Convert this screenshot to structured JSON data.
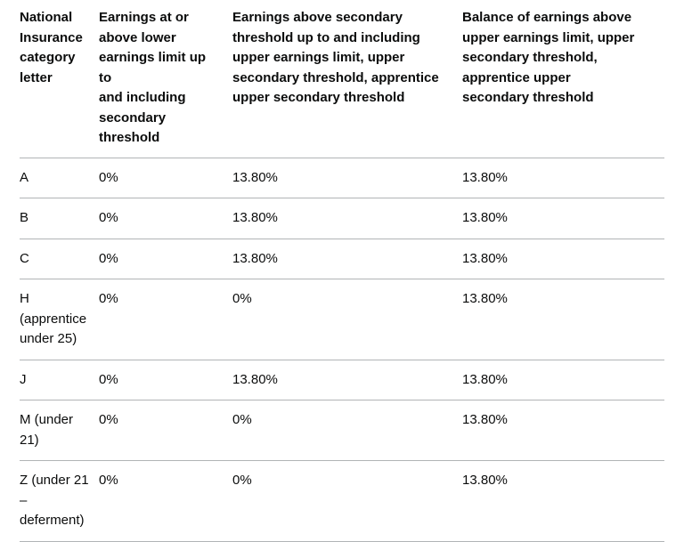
{
  "colors": {
    "text_color": "#0b0c0c",
    "border_color": "#b1b4b6",
    "background_color": "#ffffff"
  },
  "table": {
    "headers": [
      "National\nInsurance\ncategory\nletter",
      "Earnings at or\nabove lower\nearnings limit up to\nand including\nsecondary\nthreshold",
      "Earnings above secondary\nthreshold up to and including\nupper earnings limit, upper\nsecondary threshold, apprentice\nupper secondary threshold",
      "Balance of earnings above\nupper earnings limit, upper\nsecondary threshold,\napprentice upper\nsecondary threshold"
    ],
    "rows": [
      {
        "cells": [
          "A",
          "0%",
          "13.80%",
          "13.80%"
        ]
      },
      {
        "cells": [
          "B",
          "0%",
          "13.80%",
          "13.80%"
        ]
      },
      {
        "cells": [
          "C",
          "0%",
          "13.80%",
          "13.80%"
        ]
      },
      {
        "cells": [
          "H\n(apprentice\nunder 25)",
          "0%",
          "0%",
          "13.80%"
        ]
      },
      {
        "cells": [
          "J",
          "0%",
          "13.80%",
          "13.80%"
        ]
      },
      {
        "cells": [
          "M (under\n21)",
          "0%",
          "0%",
          "13.80%"
        ]
      },
      {
        "cells": [
          "Z (under 21\n–\ndeferment)",
          "0%",
          "0%",
          "13.80%"
        ]
      }
    ]
  }
}
